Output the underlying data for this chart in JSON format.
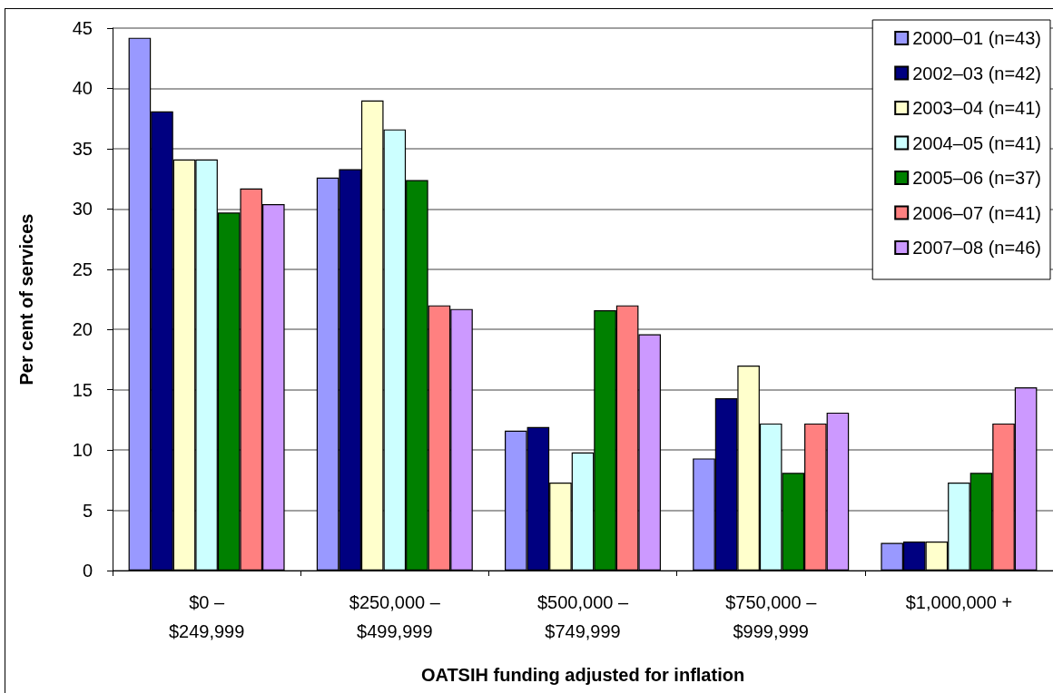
{
  "chart_data": {
    "type": "bar",
    "xlabel": "OATSIH funding adjusted for inflation",
    "ylabel": "Per cent of services",
    "categories": [
      "$0 – $249,999",
      "$250,000 – $499,999",
      "$500,000 – $749,999",
      "$750,000 – $999,999",
      "$1,000,000 +"
    ],
    "series": [
      {
        "name": "2000–01 (n=43)",
        "color": "#9999ff",
        "values": [
          44.2,
          32.6,
          11.6,
          9.3,
          2.3
        ]
      },
      {
        "name": "2002–03 (n=42)",
        "color": "#000080",
        "values": [
          38.1,
          33.3,
          11.9,
          14.3,
          2.4
        ]
      },
      {
        "name": "2003–04 (n=41)",
        "color": "#ffffcc",
        "values": [
          34.1,
          39.0,
          7.3,
          17.0,
          2.4
        ]
      },
      {
        "name": "2004–05 (n=41)",
        "color": "#ccffff",
        "values": [
          34.1,
          36.6,
          9.8,
          12.2,
          7.3
        ]
      },
      {
        "name": "2005–06 (n=37)",
        "color": "#008000",
        "values": [
          29.7,
          32.4,
          21.6,
          8.1,
          8.1
        ]
      },
      {
        "name": "2006–07 (n=41)",
        "color": "#ff8080",
        "values": [
          31.7,
          22.0,
          22.0,
          12.2,
          12.2
        ]
      },
      {
        "name": "2007–08 (n=46)",
        "color": "#cc99ff",
        "values": [
          30.4,
          21.7,
          19.6,
          13.1,
          15.2
        ]
      }
    ],
    "ylim": [
      0,
      45
    ],
    "yticks": [
      0,
      5,
      10,
      15,
      20,
      25,
      30,
      35,
      40,
      45
    ],
    "grid": "y",
    "legend": "top right"
  }
}
